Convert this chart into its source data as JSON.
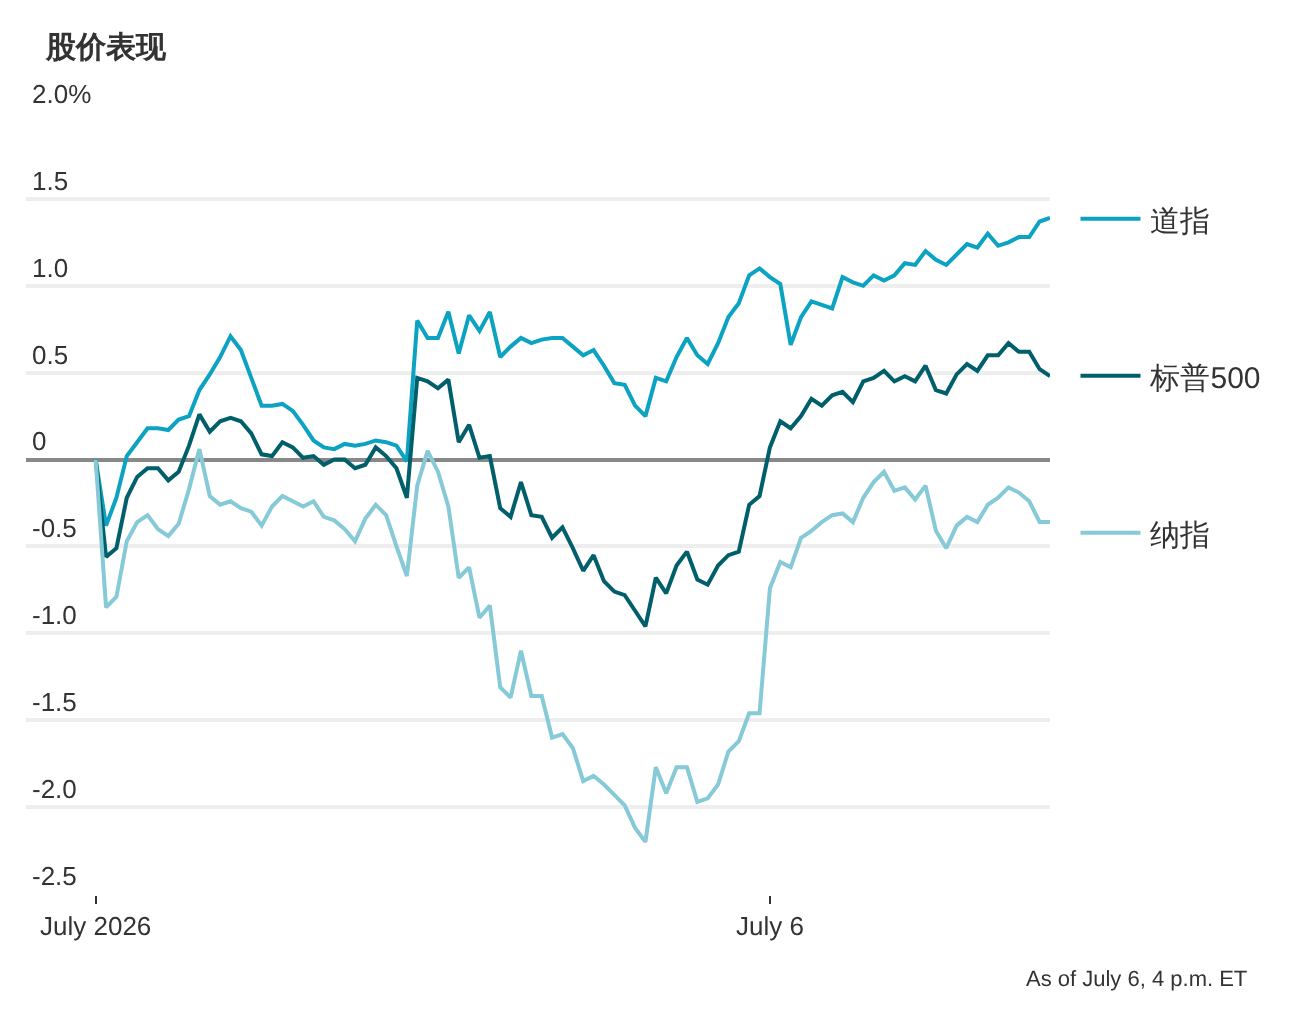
{
  "chart_data": {
    "type": "line",
    "title": "股价表现",
    "categories": [
      "July 2026",
      null,
      null,
      null,
      null,
      null,
      null,
      null,
      null,
      null,
      null,
      null,
      null,
      null,
      null,
      null,
      null,
      null,
      null,
      null,
      null,
      null,
      null,
      null,
      null,
      null,
      null,
      null,
      null,
      null,
      null,
      null,
      null,
      null,
      null,
      null,
      null,
      null,
      null,
      null,
      null,
      null,
      null,
      null,
      null,
      null,
      null,
      null,
      null,
      null,
      null,
      null,
      null,
      null,
      null,
      null,
      null,
      null,
      null,
      null,
      null,
      null,
      null,
      null,
      null,
      "July 6",
      null,
      null,
      null,
      null,
      null,
      null,
      null,
      null,
      null,
      null,
      null,
      null,
      null,
      null,
      null,
      null,
      null,
      null,
      null,
      null,
      null,
      null,
      null,
      null,
      null,
      null,
      null
    ],
    "ylim": [
      -2.5,
      2.0
    ],
    "yticks": [
      {
        "value": 2,
        "label": "2.0%"
      },
      1.5,
      {
        "value": 1,
        "label": "1.0"
      },
      0.5,
      0,
      -0.5,
      {
        "value": -1,
        "label": "-1.0"
      },
      -1.5,
      {
        "value": -2,
        "label": "-2.0"
      },
      -2.5
    ],
    "grid": "y",
    "legend": "right",
    "annotations": [
      "As of July 6, 4 p.m. ET"
    ],
    "series": [
      {
        "name": "道指",
        "color": "#0ba3c1",
        "values": [
          0,
          -0.38,
          -0.22,
          0.02,
          0.1,
          0.18,
          0.18,
          0.17,
          0.23,
          0.25,
          0.4,
          0.49,
          0.59,
          0.71,
          0.63,
          0.47,
          0.31,
          0.31,
          0.32,
          0.28,
          0.2,
          0.11,
          0.07,
          0.06,
          0.09,
          0.08,
          0.09,
          0.11,
          0.1,
          0.08,
          -0.01,
          0.8,
          0.7,
          0.7,
          0.85,
          0.61,
          0.83,
          0.74,
          0.85,
          0.59,
          0.65,
          0.7,
          0.67,
          0.69,
          0.7,
          0.7,
          0.65,
          0.6,
          0.63,
          0.54,
          0.44,
          0.43,
          0.31,
          0.25,
          0.47,
          0.45,
          0.59,
          0.7,
          0.6,
          0.55,
          0.67,
          0.82,
          0.9,
          1.06,
          1.1,
          1.05,
          1.01,
          0.66,
          0.82,
          0.91,
          0.89,
          0.87,
          1.05,
          1.02,
          1.0,
          1.06,
          1.03,
          1.06,
          1.13,
          1.12,
          1.2,
          1.15,
          1.12,
          1.18,
          1.24,
          1.22,
          1.3,
          1.23,
          1.25,
          1.28,
          1.28,
          1.37,
          1.39
        ]
      },
      {
        "name": "标普500",
        "color": "#005f6b",
        "values": [
          0,
          -0.56,
          -0.51,
          -0.22,
          -0.1,
          -0.05,
          -0.05,
          -0.12,
          -0.07,
          0.08,
          0.26,
          0.16,
          0.22,
          0.24,
          0.22,
          0.15,
          0.03,
          0.02,
          0.1,
          0.07,
          0.01,
          0.02,
          -0.03,
          0,
          0,
          -0.05,
          -0.03,
          0.07,
          0.02,
          -0.05,
          -0.22,
          0.47,
          0.45,
          0.41,
          0.46,
          0.1,
          0.2,
          0.01,
          0.02,
          -0.28,
          -0.33,
          -0.13,
          -0.32,
          -0.33,
          -0.45,
          -0.39,
          -0.51,
          -0.64,
          -0.55,
          -0.7,
          -0.76,
          -0.78,
          -0.87,
          -0.96,
          -0.68,
          -0.77,
          -0.61,
          -0.53,
          -0.69,
          -0.72,
          -0.61,
          -0.55,
          -0.53,
          -0.26,
          -0.21,
          0.07,
          0.22,
          0.18,
          0.25,
          0.35,
          0.31,
          0.37,
          0.39,
          0.33,
          0.45,
          0.47,
          0.51,
          0.45,
          0.48,
          0.45,
          0.54,
          0.4,
          0.38,
          0.49,
          0.55,
          0.51,
          0.6,
          0.6,
          0.67,
          0.62,
          0.62,
          0.52,
          0.48
        ]
      },
      {
        "name": "纳指",
        "color": "#86c9d7",
        "values": [
          0,
          -0.85,
          -0.79,
          -0.47,
          -0.36,
          -0.32,
          -0.4,
          -0.44,
          -0.37,
          -0.17,
          0.06,
          -0.21,
          -0.26,
          -0.24,
          -0.28,
          -0.3,
          -0.38,
          -0.27,
          -0.21,
          -0.24,
          -0.27,
          -0.24,
          -0.33,
          -0.35,
          -0.4,
          -0.47,
          -0.34,
          -0.26,
          -0.32,
          -0.5,
          -0.67,
          -0.15,
          0.05,
          -0.07,
          -0.27,
          -0.68,
          -0.62,
          -0.91,
          -0.84,
          -1.31,
          -1.37,
          -1.1,
          -1.36,
          -1.36,
          -1.6,
          -1.58,
          -1.66,
          -1.85,
          -1.82,
          -1.87,
          -1.93,
          -1.99,
          -2.12,
          -2.2,
          -1.77,
          -1.92,
          -1.77,
          -1.77,
          -1.97,
          -1.95,
          -1.87,
          -1.68,
          -1.62,
          -1.46,
          -1.46,
          -0.74,
          -0.59,
          -0.62,
          -0.45,
          -0.41,
          -0.36,
          -0.32,
          -0.31,
          -0.36,
          -0.22,
          -0.13,
          -0.07,
          -0.18,
          -0.16,
          -0.23,
          -0.15,
          -0.41,
          -0.51,
          -0.38,
          -0.33,
          -0.36,
          -0.26,
          -0.22,
          -0.16,
          -0.19,
          -0.24,
          -0.36,
          -0.36
        ]
      }
    ]
  }
}
